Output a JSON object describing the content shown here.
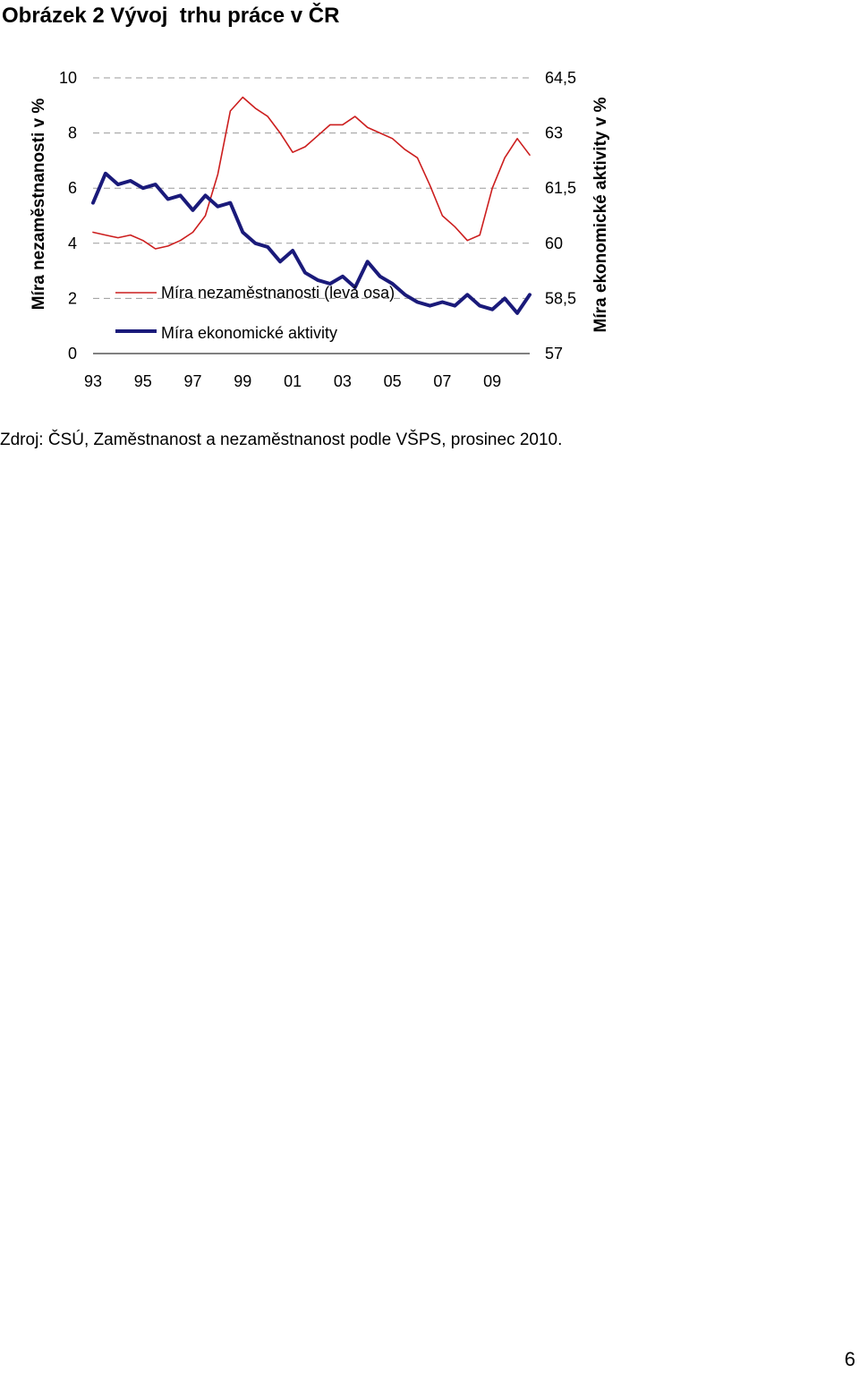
{
  "figure": {
    "title": "Obrázek 2 Vývoj  trhu práce v ČR",
    "source": "Zdroj: ČSÚ, Zaměstnanost a nezaměstnanost podle VŠPS, prosinec 2010.",
    "page_number": "6"
  },
  "chart_data": {
    "type": "line",
    "title": "",
    "xlabel": "",
    "ylabel_left": "Míra nezaměstnanosti v %",
    "ylabel_right": "Míra ekonomické aktivity v %",
    "x_tick_labels": [
      "93",
      "95",
      "97",
      "99",
      "01",
      "03",
      "05",
      "07",
      "09"
    ],
    "left_axis": {
      "ylim": [
        0,
        10
      ],
      "ticks": [
        0,
        2,
        4,
        6,
        8,
        10
      ],
      "tick_labels": [
        "0",
        "2",
        "4",
        "6",
        "8",
        "10"
      ]
    },
    "right_axis": {
      "ylim": [
        57,
        64.5
      ],
      "ticks": [
        57,
        58.5,
        60,
        61.5,
        63,
        64.5
      ],
      "tick_labels": [
        "57",
        "58,5",
        "60",
        "61,5",
        "63",
        "64,5"
      ]
    },
    "grid": "horizontal dashed",
    "legend_position": "bottom-left inside",
    "series": [
      {
        "name": "Míra nezaměstnanosti (levá osa)",
        "axis": "left",
        "color": "#cc1e1e",
        "x": [
          "93",
          "93.5",
          "94",
          "94.5",
          "95",
          "95.5",
          "96",
          "96.5",
          "97",
          "97.5",
          "98",
          "98.5",
          "99",
          "99.5",
          "00",
          "00.5",
          "01",
          "01.5",
          "02",
          "02.5",
          "03",
          "03.5",
          "04",
          "04.5",
          "05",
          "05.5",
          "06",
          "06.5",
          "07",
          "07.5",
          "08",
          "08.5",
          "09",
          "09.5",
          "10",
          "10.5"
        ],
        "values": [
          4.4,
          4.3,
          4.2,
          4.3,
          4.1,
          3.8,
          3.9,
          4.1,
          4.4,
          5.0,
          6.5,
          8.8,
          9.3,
          8.9,
          8.6,
          8.0,
          7.3,
          7.5,
          7.9,
          8.3,
          8.3,
          8.6,
          8.2,
          8.0,
          7.8,
          7.4,
          7.1,
          6.1,
          5.0,
          4.6,
          4.1,
          4.3,
          6.0,
          7.1,
          7.8,
          7.2
        ]
      },
      {
        "name": "Míra ekonomické aktivity",
        "axis": "right",
        "color": "#1a1a7a",
        "x": [
          "93",
          "93.5",
          "94",
          "94.5",
          "95",
          "95.5",
          "96",
          "96.5",
          "97",
          "97.5",
          "98",
          "98.5",
          "99",
          "99.5",
          "00",
          "00.5",
          "01",
          "01.5",
          "02",
          "02.5",
          "03",
          "03.5",
          "04",
          "04.5",
          "05",
          "05.5",
          "06",
          "06.5",
          "07",
          "07.5",
          "08",
          "08.5",
          "09",
          "09.5",
          "10",
          "10.5"
        ],
        "values": [
          61.1,
          61.9,
          61.6,
          61.7,
          61.5,
          61.6,
          61.2,
          61.3,
          60.9,
          61.3,
          61.0,
          61.1,
          60.3,
          60.0,
          59.9,
          59.5,
          59.8,
          59.2,
          59.0,
          58.9,
          59.1,
          58.8,
          59.5,
          59.1,
          58.9,
          58.6,
          58.4,
          58.3,
          58.4,
          58.3,
          58.6,
          58.3,
          58.2,
          58.5,
          58.1,
          58.6
        ]
      }
    ]
  }
}
